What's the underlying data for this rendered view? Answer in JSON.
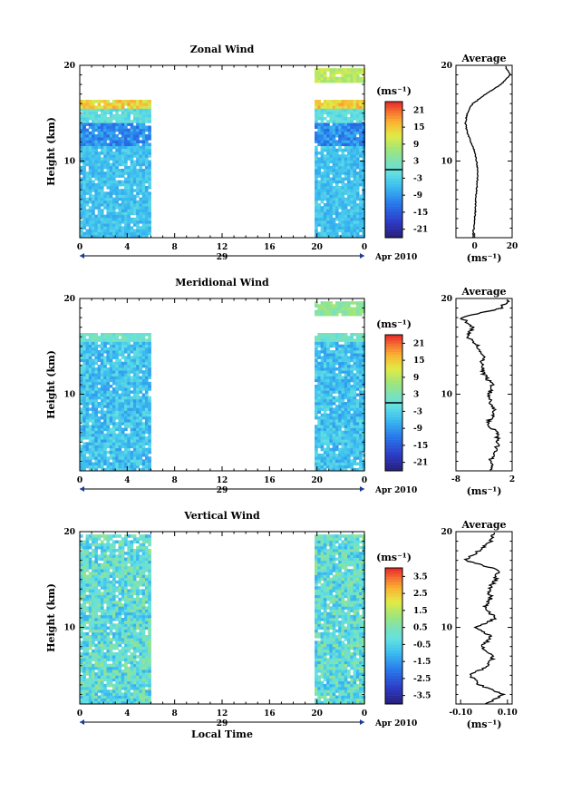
{
  "chart_data": [
    {
      "type": "heatmap",
      "title": "Zonal Wind",
      "ylabel": "Height (km)",
      "y_ticks": [
        "20",
        "10"
      ],
      "x_ticks": [
        "0",
        "4",
        "8",
        "12",
        "16",
        "20",
        "0"
      ],
      "date_label": "29",
      "month_label": "Apr 2010",
      "xlim": [
        0,
        24
      ],
      "ylim": [
        2,
        20
      ],
      "data_windows": [
        [
          0,
          5.8
        ],
        [
          19.8,
          24
        ]
      ],
      "colorbar": {
        "unit": "(ms⁻¹)",
        "ticks": [
          "21",
          "15",
          "9",
          "3",
          "-3",
          "-9",
          "-15",
          "-21"
        ],
        "range": [
          -24,
          24
        ]
      },
      "average": {
        "title": "Average",
        "xlabel": "(ms⁻¹)",
        "x_ticks": [
          "0",
          "20"
        ],
        "y_ticks": [
          "20",
          "10"
        ],
        "xlim": [
          -10,
          20
        ],
        "heights": [
          2,
          3,
          4,
          5,
          6,
          7,
          8,
          9,
          10,
          11,
          12,
          13,
          14,
          15,
          16,
          17,
          18,
          19,
          20
        ],
        "values": [
          -1,
          -0.5,
          0,
          0.5,
          0.5,
          1,
          1.5,
          1.5,
          1,
          0,
          -2,
          -4,
          -5,
          -4,
          -1,
          6,
          14,
          19,
          16
        ]
      }
    },
    {
      "type": "heatmap",
      "title": "Meridional Wind",
      "ylabel": "Height (km)",
      "y_ticks": [
        "20",
        "10"
      ],
      "x_ticks": [
        "0",
        "4",
        "8",
        "12",
        "16",
        "20",
        "0"
      ],
      "date_label": "29",
      "month_label": "Apr 2010",
      "xlim": [
        0,
        24
      ],
      "ylim": [
        2,
        20
      ],
      "data_windows": [
        [
          0,
          5.8
        ],
        [
          19.8,
          24
        ]
      ],
      "colorbar": {
        "unit": "(ms⁻¹)",
        "ticks": [
          "21",
          "15",
          "9",
          "3",
          "-3",
          "-9",
          "-15",
          "-21"
        ],
        "range": [
          -24,
          24
        ]
      },
      "average": {
        "title": "Average",
        "xlabel": "(ms⁻¹)",
        "x_ticks": [
          "-8",
          "2"
        ],
        "y_ticks": [
          "20",
          "10"
        ],
        "xlim": [
          -8,
          2
        ],
        "heights": [
          2,
          3,
          4,
          5,
          6,
          7,
          8,
          9,
          10,
          11,
          12,
          13,
          14,
          15,
          16,
          17,
          18,
          19,
          20
        ],
        "values": [
          -1.5,
          -2,
          -1,
          -0.5,
          -0.8,
          -2.5,
          -1,
          -1.8,
          -2,
          -1.5,
          -3,
          -3.5,
          -3.2,
          -4,
          -6,
          -5,
          -7,
          0,
          1.5
        ]
      }
    },
    {
      "type": "heatmap",
      "title": "Vertical Wind",
      "ylabel": "Height (km)",
      "xlabel": "Local Time",
      "y_ticks": [
        "20",
        "10"
      ],
      "x_ticks": [
        "0",
        "4",
        "8",
        "12",
        "16",
        "20",
        "0"
      ],
      "date_label": "29",
      "month_label": "Apr 2010",
      "xlim": [
        0,
        24
      ],
      "ylim": [
        2,
        20
      ],
      "data_windows": [
        [
          0,
          5.8
        ],
        [
          19.8,
          24
        ]
      ],
      "colorbar": {
        "unit": "(ms⁻¹)",
        "ticks": [
          "3.5",
          "2.5",
          "1.5",
          "0.5",
          "-0.5",
          "-1.5",
          "-2.5",
          "-3.5"
        ],
        "range": [
          -4,
          4
        ]
      },
      "average": {
        "title": "Average",
        "xlabel": "(ms⁻¹)",
        "x_ticks": [
          "-0.10",
          "0.10"
        ],
        "y_ticks": [
          "20",
          "10"
        ],
        "xlim": [
          -0.12,
          0.12
        ],
        "heights": [
          2,
          3,
          4,
          5,
          6,
          7,
          8,
          9,
          10,
          11,
          12,
          13,
          14,
          15,
          16,
          17,
          18,
          19,
          20
        ],
        "values": [
          0.01,
          0.08,
          -0.02,
          -0.06,
          0.02,
          0.04,
          -0.01,
          0.03,
          -0.03,
          0.05,
          0,
          0.03,
          0.02,
          0.05,
          0.06,
          -0.08,
          -0.02,
          0.03,
          0.04
        ]
      }
    }
  ]
}
